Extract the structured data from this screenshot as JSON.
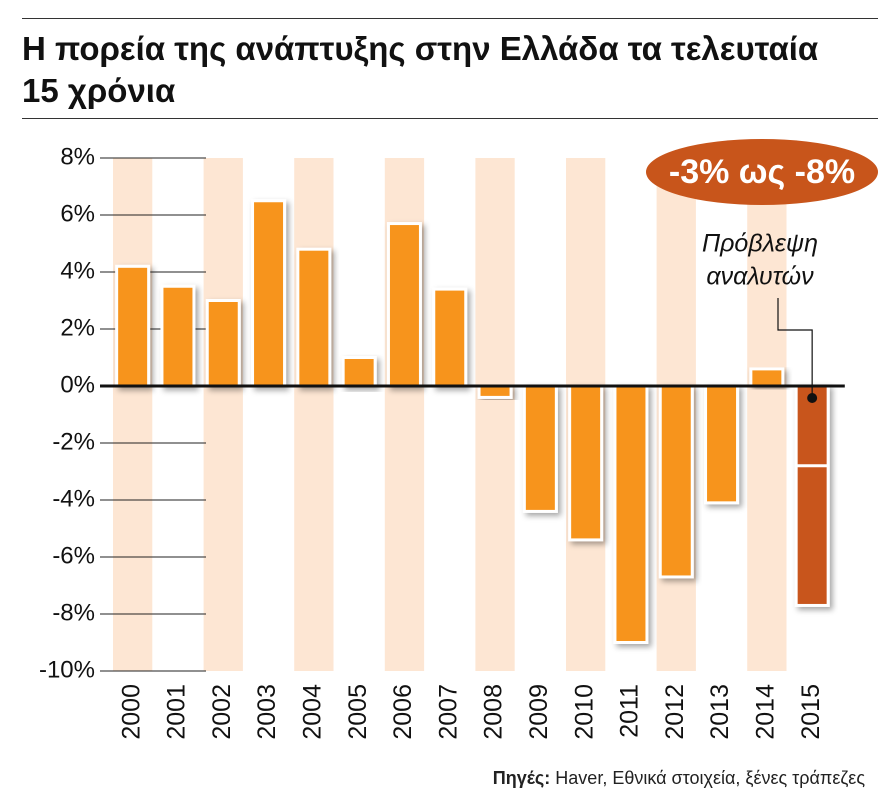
{
  "chart_data": {
    "type": "bar",
    "title": "Η πορεία της ανάπτυξης στην Ελλάδα τα τελευταία 15 χρόνια",
    "categories": [
      "2000",
      "2001",
      "2002",
      "2003",
      "2004",
      "2005",
      "2006",
      "2007",
      "2008",
      "2009",
      "2010",
      "2011",
      "2012",
      "2013",
      "2014",
      "2015"
    ],
    "values": [
      4.2,
      3.5,
      3.0,
      6.5,
      4.8,
      1.0,
      5.7,
      3.4,
      -0.4,
      -4.4,
      -5.4,
      -9.0,
      -6.7,
      -4.1,
      0.6,
      -7.7
    ],
    "color": "#f7941d",
    "forecast_color": "#c8551b",
    "forecast_divider": -2.8,
    "ylim": [
      -10,
      8
    ],
    "yticks": [
      {
        "value": -10,
        "label": "-10%"
      },
      {
        "value": -8,
        "label": "-8%"
      },
      {
        "value": -6,
        "label": "-6%"
      },
      {
        "value": -4,
        "label": "-4%"
      },
      {
        "value": -2,
        "label": "-2%"
      },
      {
        "value": 0,
        "label": "0%"
      },
      {
        "value": 2,
        "label": "2%"
      },
      {
        "value": 4,
        "label": "4%"
      },
      {
        "value": 6,
        "label": "6%"
      },
      {
        "value": 8,
        "label": "8%"
      }
    ],
    "grid": true,
    "forecast_badge": "-3% ως -8%",
    "annotation": [
      "Πρόβλεψη",
      "αναλυτών"
    ],
    "source_label": "Πηγές:",
    "source": "Haver, Εθνικά στοιχεία, ξένες τράπεζες"
  }
}
